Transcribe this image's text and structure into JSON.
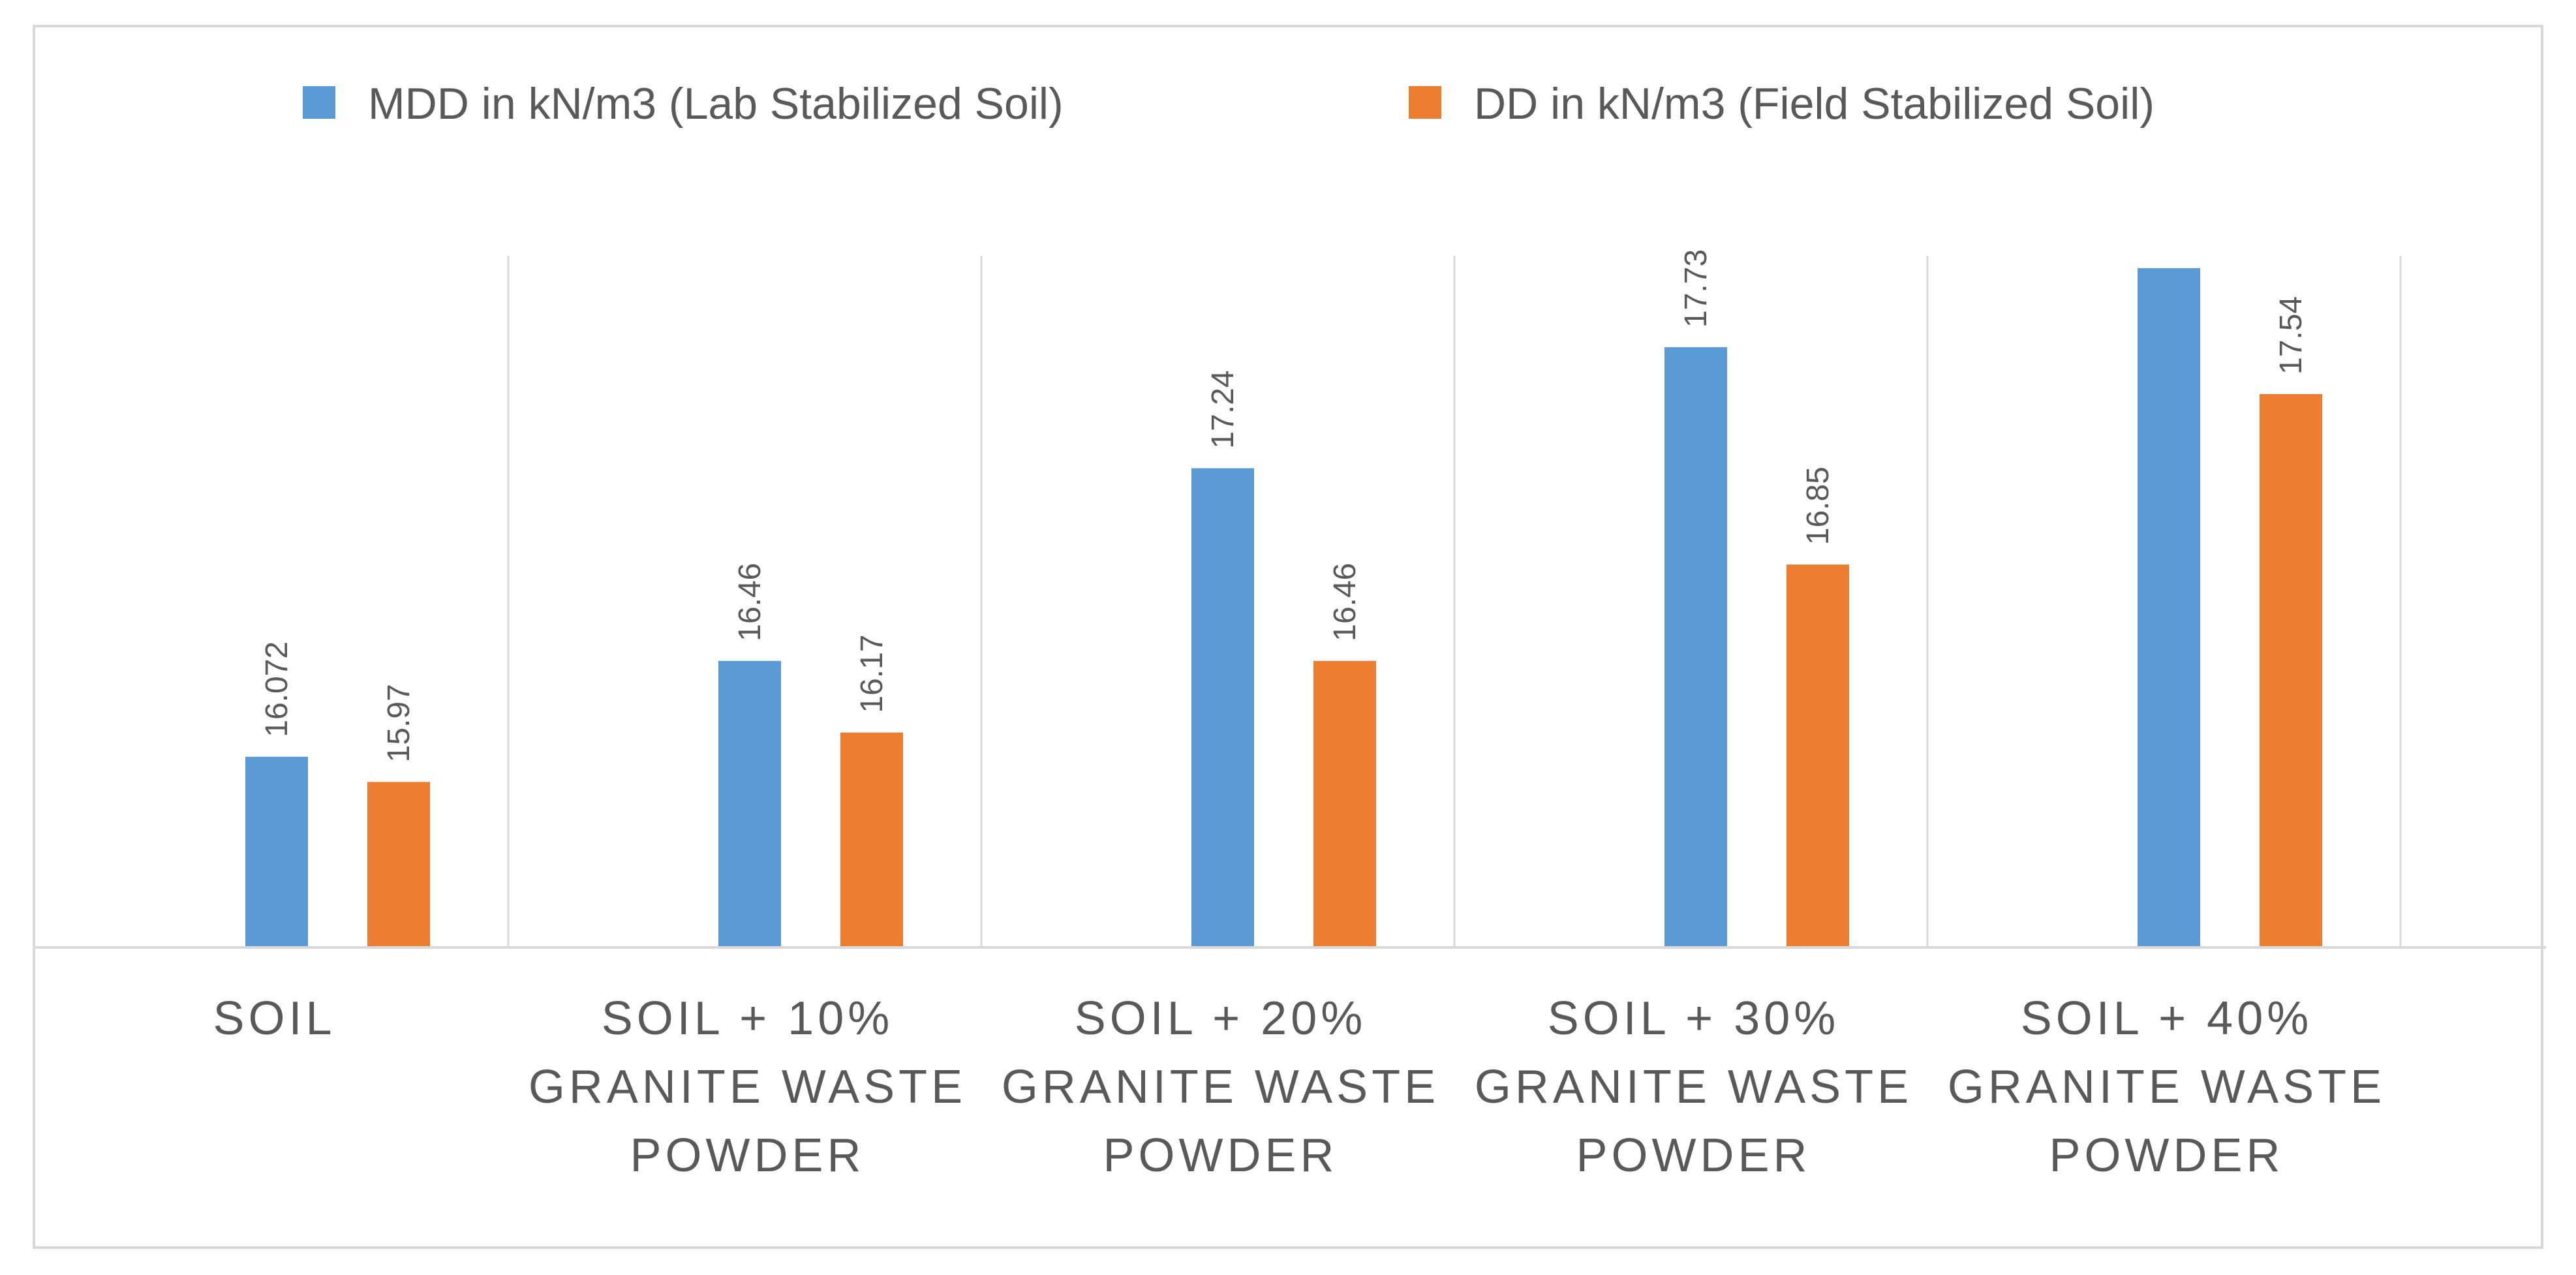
{
  "chart_data": {
    "type": "bar",
    "title": "",
    "xlabel": "",
    "ylabel": "",
    "ylim": [
      15.3,
      18.1
    ],
    "grid": false,
    "legend_position": "top",
    "categories": [
      [
        "SOIL"
      ],
      [
        "SOIL + 10%",
        "GRANITE WASTE",
        "POWDER"
      ],
      [
        "SOIL + 20%",
        "GRANITE WASTE",
        "POWDER"
      ],
      [
        "SOIL + 30%",
        "GRANITE WASTE",
        "POWDER"
      ],
      [
        "SOIL + 40%",
        "GRANITE WASTE",
        "POWDER"
      ]
    ],
    "series": [
      {
        "name": "MDD in kN/m3 (Lab Stabilized Soil)",
        "color": "#5b9bd5",
        "values": [
          16.072,
          16.46,
          17.24,
          17.73,
          18.05
        ],
        "labels": [
          "16.072",
          "16.46",
          "17.24",
          "17.73",
          null
        ]
      },
      {
        "name": "DD in kN/m3 (Field Stabilized Soil)",
        "color": "#ed7d31",
        "values": [
          15.97,
          16.17,
          16.46,
          16.85,
          17.54
        ],
        "labels": [
          "15.97",
          "16.17",
          "16.46",
          "16.85",
          "17.54"
        ]
      }
    ],
    "style": {
      "gridline_color": "#d9d9d9",
      "text_color": "#595959",
      "frame_color": "#d9d9d9"
    }
  }
}
